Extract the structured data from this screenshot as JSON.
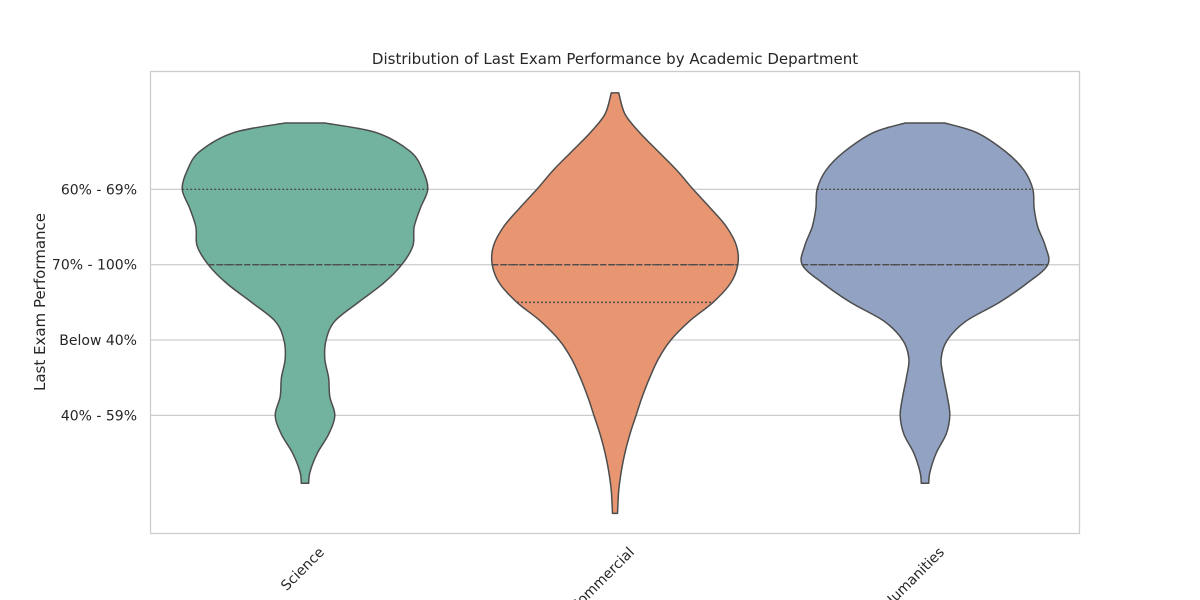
{
  "chart_data": {
    "type": "violin",
    "title": "Distribution of Last Exam Performance by Academic Department",
    "xlabel": "",
    "ylabel": "Last Exam Performance",
    "y_ticks": [
      {
        "label": "60% - 69%",
        "value": 0
      },
      {
        "label": "70% - 100%",
        "value": 1
      },
      {
        "label": "Below 40%",
        "value": 2
      },
      {
        "label": "40% - 59%",
        "value": 3
      }
    ],
    "categories": [
      "Science",
      "Commercial",
      "Humanities"
    ],
    "ylim": [
      -1.57,
      4.56
    ],
    "grid": "y",
    "inner": "quartile",
    "series": [
      {
        "category": "Science",
        "color": "#72b3a0",
        "quartiles": {
          "q1": 0,
          "median": 1,
          "q3": 1
        },
        "density": [
          [
            -0.88,
            0.16
          ],
          [
            -0.75,
            0.58
          ],
          [
            -0.5,
            0.85
          ],
          [
            -0.25,
            0.95
          ],
          [
            0,
            0.99
          ],
          [
            0.25,
            0.93
          ],
          [
            0.5,
            0.88
          ],
          [
            0.75,
            0.87
          ],
          [
            1,
            0.78
          ],
          [
            1.25,
            0.63
          ],
          [
            1.5,
            0.43
          ],
          [
            1.75,
            0.24
          ],
          [
            2,
            0.17
          ],
          [
            2.25,
            0.16
          ],
          [
            2.5,
            0.19
          ],
          [
            2.75,
            0.2
          ],
          [
            3,
            0.24
          ],
          [
            3.25,
            0.19
          ],
          [
            3.5,
            0.1
          ],
          [
            3.75,
            0.04
          ],
          [
            3.9,
            0.03
          ]
        ]
      },
      {
        "category": "Commercial",
        "color": "#e89572",
        "quartiles": {
          "q1": 1,
          "median": 1,
          "q3": 1.5
        },
        "density": [
          [
            -1.28,
            0.03
          ],
          [
            -1,
            0.08
          ],
          [
            -0.75,
            0.2
          ],
          [
            -0.5,
            0.35
          ],
          [
            -0.25,
            0.5
          ],
          [
            0,
            0.63
          ],
          [
            0.25,
            0.77
          ],
          [
            0.5,
            0.9
          ],
          [
            0.75,
            0.98
          ],
          [
            1,
            0.99
          ],
          [
            1.25,
            0.93
          ],
          [
            1.5,
            0.79
          ],
          [
            1.75,
            0.6
          ],
          [
            2,
            0.45
          ],
          [
            2.25,
            0.35
          ],
          [
            2.5,
            0.28
          ],
          [
            2.75,
            0.22
          ],
          [
            3,
            0.17
          ],
          [
            3.25,
            0.12
          ],
          [
            3.5,
            0.08
          ],
          [
            3.75,
            0.05
          ],
          [
            4.0,
            0.03
          ],
          [
            4.3,
            0.02
          ]
        ]
      },
      {
        "category": "Humanities",
        "color": "#92a2c2",
        "quartiles": {
          "q1": 0,
          "median": 1,
          "q3": 1
        },
        "density": [
          [
            -0.88,
            0.16
          ],
          [
            -0.75,
            0.42
          ],
          [
            -0.5,
            0.65
          ],
          [
            -0.25,
            0.8
          ],
          [
            0,
            0.87
          ],
          [
            0.25,
            0.88
          ],
          [
            0.5,
            0.91
          ],
          [
            0.75,
            0.97
          ],
          [
            1,
            0.99
          ],
          [
            1.25,
            0.82
          ],
          [
            1.5,
            0.6
          ],
          [
            1.75,
            0.33
          ],
          [
            2,
            0.18
          ],
          [
            2.25,
            0.13
          ],
          [
            2.5,
            0.15
          ],
          [
            2.75,
            0.18
          ],
          [
            3,
            0.2
          ],
          [
            3.25,
            0.17
          ],
          [
            3.5,
            0.09
          ],
          [
            3.75,
            0.04
          ],
          [
            3.9,
            0.03
          ]
        ]
      }
    ]
  }
}
